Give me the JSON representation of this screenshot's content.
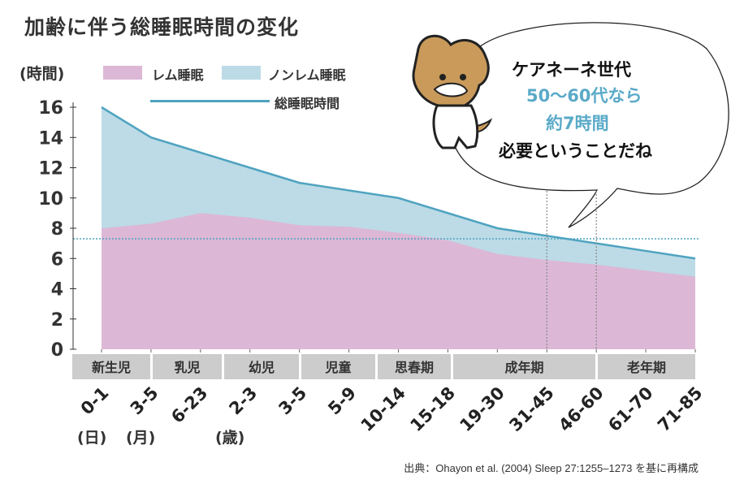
{
  "title": "加齢に伴う総睡眠時間の変化",
  "legend": {
    "rem": "レム睡眠",
    "nonrem": "ノンレム睡眠",
    "total": "総睡眠時間"
  },
  "colors": {
    "rem": "#dcb8d6",
    "nonrem": "#bcdbe6",
    "line": "#4fa3c0",
    "band": "#cccccc"
  },
  "bubble": {
    "line1": "ケアネーネ世代",
    "line2": "50〜60代なら",
    "line3": "約7時間",
    "line4": "必要ということだね"
  },
  "unit_markers": [
    "(日)",
    "(月)",
    "(歳)"
  ],
  "source": "出典：Ohayon et al. (2004) Sleep 27:1255–1273 を基に再構成",
  "chart_data": {
    "type": "area",
    "title": "加齢に伴う総睡眠時間の変化",
    "ylabel": "(時間)",
    "ylim": [
      0,
      16
    ],
    "yticks": [
      0,
      2,
      4,
      6,
      8,
      10,
      12,
      14,
      16
    ],
    "categories": [
      "0-1",
      "3-5",
      "6-23",
      "2-3",
      "3-5",
      "5-9",
      "10-14",
      "15-18",
      "19-30",
      "31-45",
      "46-60",
      "61-70",
      "71-85"
    ],
    "groups": [
      {
        "label": "新生児",
        "from": 0,
        "to": 1
      },
      {
        "label": "乳児",
        "from": 1,
        "to": 2
      },
      {
        "label": "幼児",
        "from": 2,
        "to": 4
      },
      {
        "label": "児童",
        "from": 4,
        "to": 5
      },
      {
        "label": "思春期",
        "from": 5,
        "to": 7
      },
      {
        "label": "成年期",
        "from": 7,
        "to": 10
      },
      {
        "label": "老年期",
        "from": 10,
        "to": 12
      }
    ],
    "series": [
      {
        "name": "レム睡眠",
        "values": [
          8.0,
          8.3,
          9.0,
          8.7,
          8.2,
          8.1,
          7.7,
          7.2,
          6.3,
          5.9,
          5.6,
          5.2,
          4.8
        ]
      },
      {
        "name": "総睡眠時間",
        "values": [
          16,
          14,
          13,
          12,
          11,
          10.5,
          10,
          9,
          8,
          7.5,
          7,
          6.5,
          6
        ]
      }
    ],
    "reference_line_y": 7.3,
    "highlight_categories": [
      "31-45",
      "46-60"
    ]
  }
}
